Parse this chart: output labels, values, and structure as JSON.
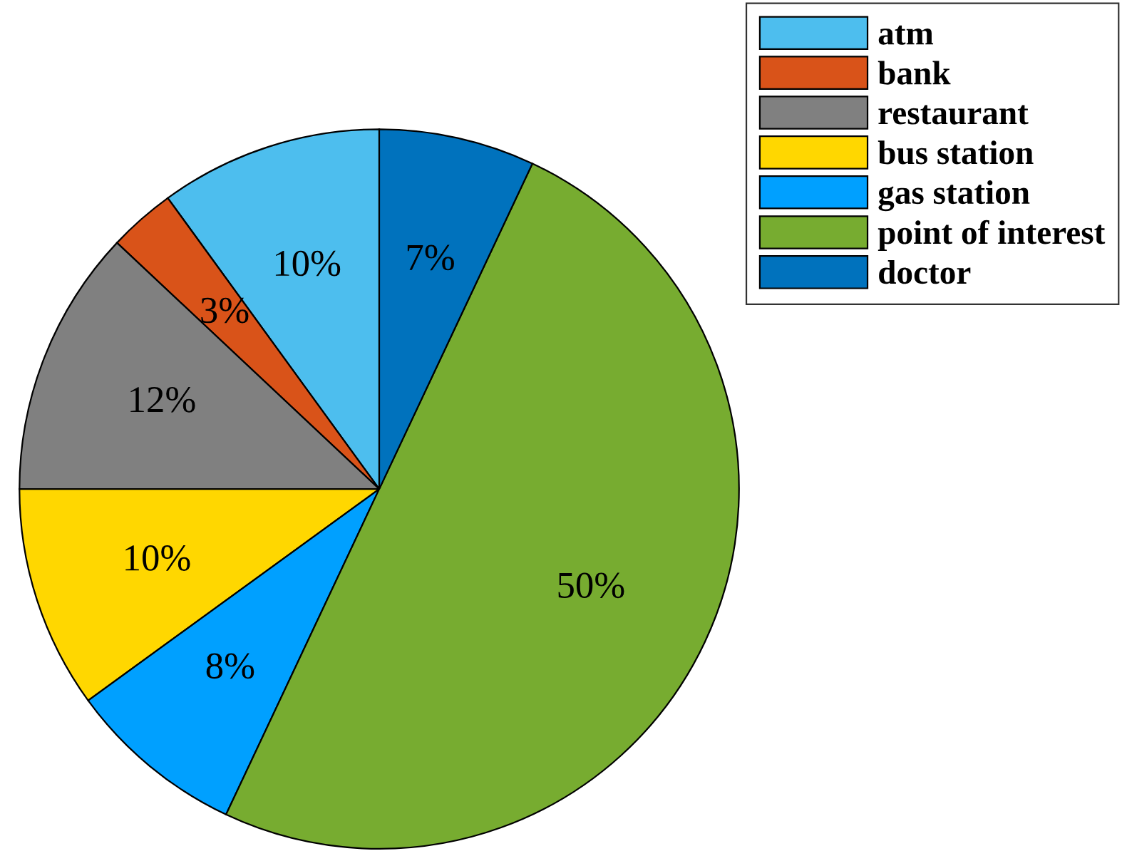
{
  "chart_data": {
    "type": "pie",
    "categories": [
      "atm",
      "bank",
      "restaurant",
      "bus station",
      "gas station",
      "point of interest",
      "doctor"
    ],
    "values": [
      10,
      3,
      12,
      10,
      8,
      50,
      7
    ],
    "value_labels": [
      "10%",
      "3%",
      "12%",
      "10%",
      "8%",
      "50%",
      "7%"
    ],
    "colors": [
      "#4dbeee",
      "#d95319",
      "#808080",
      "#ffd700",
      "#00a0ff",
      "#77ac30",
      "#0072bd"
    ],
    "legend": "top right"
  }
}
